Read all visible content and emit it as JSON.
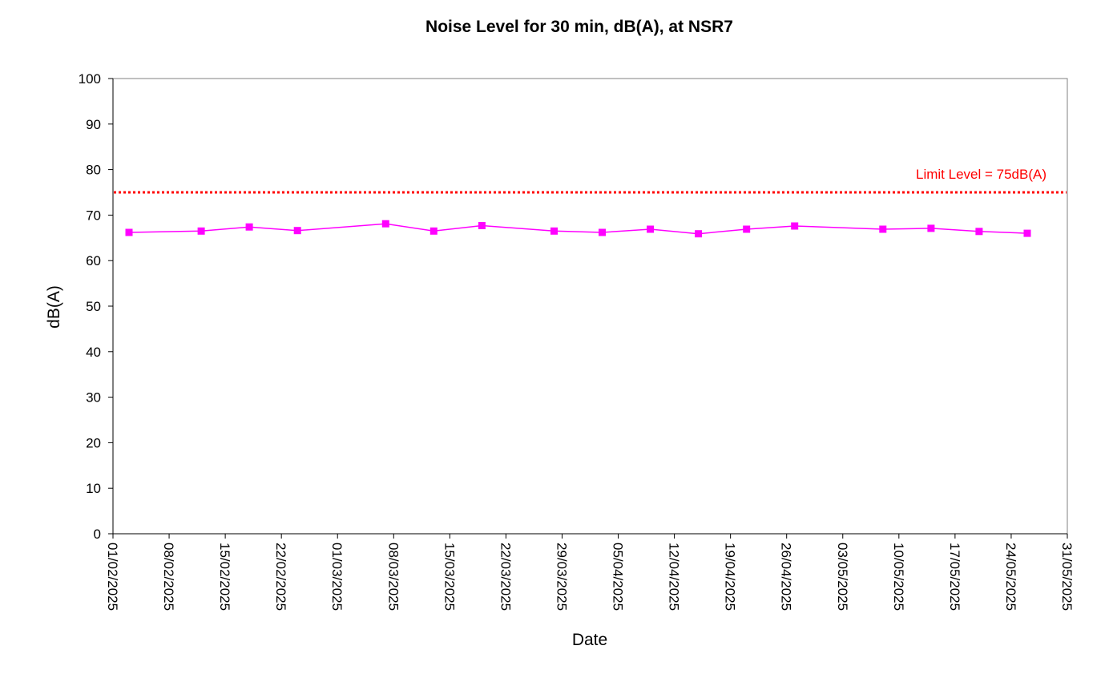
{
  "chart_data": {
    "type": "line",
    "title": "Noise Level for 30 min, dB(A), at NSR7",
    "xlabel": "Date",
    "ylabel": "dB(A)",
    "xlim": [
      "01/02/2025",
      "31/05/2025"
    ],
    "ylim": [
      0,
      100
    ],
    "x_ticks": [
      "01/02/2025",
      "08/02/2025",
      "15/02/2025",
      "22/02/2025",
      "01/03/2025",
      "08/03/2025",
      "15/03/2025",
      "22/03/2025",
      "29/03/2025",
      "05/04/2025",
      "12/04/2025",
      "19/04/2025",
      "26/04/2025",
      "03/05/2025",
      "10/05/2025",
      "17/05/2025",
      "24/05/2025",
      "31/05/2025"
    ],
    "y_ticks": [
      0,
      10,
      20,
      30,
      40,
      50,
      60,
      70,
      80,
      90,
      100
    ],
    "grid": false,
    "series": [
      {
        "color": "#ff00ff",
        "marker": "square",
        "x": [
          "03/02/2025",
          "12/02/2025",
          "18/02/2025",
          "24/02/2025",
          "07/03/2025",
          "13/03/2025",
          "19/03/2025",
          "28/03/2025",
          "03/04/2025",
          "09/04/2025",
          "15/04/2025",
          "21/04/2025",
          "27/04/2025",
          "08/05/2025",
          "14/05/2025",
          "20/05/2025",
          "26/05/2025"
        ],
        "y": [
          66.2,
          66.5,
          67.4,
          66.6,
          68.1,
          66.5,
          67.7,
          66.5,
          66.2,
          66.9,
          65.9,
          66.9,
          67.6,
          66.9,
          67.1,
          66.4,
          66.0
        ]
      }
    ],
    "reference_lines": [
      {
        "label": "Limit Level = 75dB(A)",
        "y": 75,
        "color": "#ff0000",
        "style": "dotted"
      }
    ]
  }
}
